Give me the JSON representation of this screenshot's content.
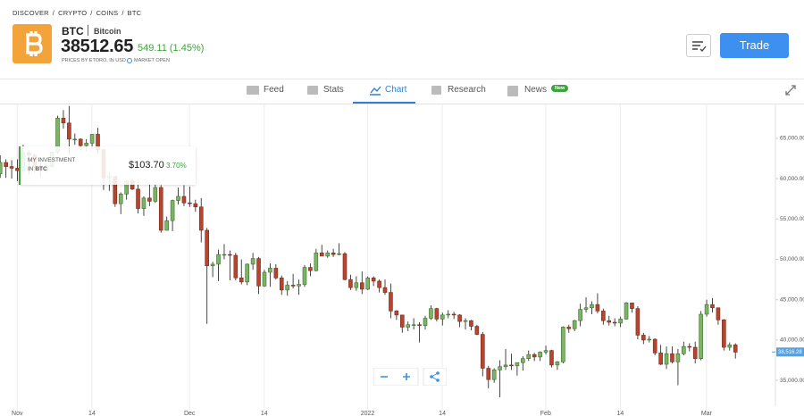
{
  "header": {
    "breadcrumb": [
      "DISCOVER",
      "CRYPTO",
      "COINS",
      "BTC"
    ],
    "breadcrumb_separator": "/",
    "ticker": "BTC",
    "name": "Bitcoin",
    "price": "38512.65",
    "change": "549.11 (1.45%)",
    "source_note": "PRICES BY ETORO, IN USD",
    "market_status": "MARKET OPEN",
    "trade_button": "Trade"
  },
  "tabs": [
    {
      "label": "Feed"
    },
    {
      "label": "Stats"
    },
    {
      "label": "Chart",
      "active": true
    },
    {
      "label": "Research"
    },
    {
      "label": "News",
      "badge": "New"
    }
  ],
  "investment": {
    "label_line1": "MY INVESTMENT",
    "label_line2_prefix": "IN",
    "label_line2_ticker": "BTC",
    "amount": "$103.70",
    "change": "3.70%"
  },
  "chart_data": {
    "type": "candlestick",
    "open": [
      60600,
      62000,
      61500,
      61300,
      61000,
      63200,
      62900,
      61400,
      61000,
      61500,
      63300,
      67500,
      66900,
      64900,
      64900,
      64100,
      64400,
      65500,
      63600,
      60100,
      60300,
      56900,
      58100,
      59700,
      58700,
      56300,
      57600,
      57200,
      58900,
      53600,
      54800,
      57300,
      57800,
      57000,
      56900,
      56500,
      53600,
      49200,
      49400,
      50600,
      50600,
      50500,
      47700,
      47200,
      49400,
      50100,
      46700,
      48400,
      48900,
      47700,
      46200,
      46800,
      46700,
      46900,
      49000,
      48600,
      50800,
      50400,
      50800,
      50600,
      50700,
      47500,
      46500,
      47100,
      46300,
      47700,
      47300,
      46500,
      45900,
      43600,
      43100,
      41600,
      41900,
      41900,
      41800,
      42700,
      43900,
      42600,
      43100,
      43200,
      43100,
      42300,
      42400,
      41700,
      40700,
      36500,
      35100,
      36300,
      36700,
      36900,
      36800,
      37200,
      37700,
      38200,
      37900,
      38500,
      38700,
      36900,
      37300,
      41600,
      41400,
      42400,
      43800,
      44000,
      44400,
      43600,
      42400,
      42200,
      42100,
      42600,
      44600,
      43900,
      40600,
      40000,
      40100,
      38400,
      37000,
      38300,
      37300,
      38300,
      39200,
      39100,
      37700,
      43200,
      44400,
      44000,
      42500,
      39100,
      39400
    ],
    "high": [
      62900,
      62400,
      62300,
      62400,
      64200,
      63500,
      63100,
      62600,
      61900,
      63300,
      67800,
      68500,
      69000,
      65600,
      65000,
      64900,
      65500,
      66300,
      63600,
      60800,
      60300,
      58300,
      59800,
      60000,
      59300,
      57800,
      59300,
      59400,
      59200,
      55300,
      57400,
      58900,
      59200,
      59000,
      57400,
      57600,
      53900,
      49700,
      51200,
      51900,
      51100,
      50800,
      50000,
      49500,
      50800,
      50300,
      48700,
      49500,
      49400,
      48000,
      47300,
      48200,
      47500,
      49300,
      49500,
      51300,
      51800,
      51100,
      51300,
      52000,
      50900,
      48100,
      47900,
      48500,
      47900,
      47900,
      47500,
      47500,
      47000,
      43700,
      43100,
      42300,
      42700,
      42200,
      43000,
      44300,
      44000,
      43400,
      43700,
      43500,
      43200,
      42700,
      42500,
      41900,
      41000,
      36800,
      36500,
      37500,
      38900,
      38300,
      37200,
      38000,
      38700,
      38400,
      38600,
      39300,
      38800,
      37400,
      41700,
      41900,
      42500,
      44500,
      45300,
      44800,
      45800,
      43900,
      43000,
      42700,
      42900,
      44700,
      44600,
      44200,
      40900,
      40500,
      40200,
      39400,
      39200,
      39200,
      38900,
      39800,
      39600,
      39800,
      43600,
      45000,
      45200,
      44000,
      42600,
      39700,
      39600
    ],
    "low": [
      60100,
      60100,
      60000,
      59700,
      60700,
      60500,
      60700,
      60200,
      60800,
      61400,
      63100,
      66200,
      63000,
      64200,
      63500,
      63400,
      63700,
      63100,
      58600,
      58500,
      56500,
      55600,
      57400,
      58600,
      55700,
      55400,
      56600,
      57000,
      53300,
      53600,
      53500,
      56800,
      56600,
      56500,
      55900,
      52100,
      42000,
      47800,
      47300,
      50000,
      47400,
      47400,
      46900,
      46800,
      48700,
      45700,
      46600,
      46600,
      47500,
      45600,
      45500,
      46400,
      45600,
      46600,
      47900,
      48500,
      50400,
      50200,
      50300,
      50500,
      47400,
      46200,
      46100,
      45700,
      46200,
      46700,
      45900,
      45600,
      42700,
      42500,
      40900,
      41100,
      41300,
      39700,
      41300,
      42500,
      42300,
      41800,
      42700,
      42600,
      41600,
      41300,
      41200,
      40600,
      35500,
      34000,
      34700,
      32900,
      36300,
      36300,
      35600,
      36200,
      37400,
      37400,
      37400,
      38200,
      36600,
      36300,
      37100,
      40900,
      41100,
      41700,
      43400,
      43200,
      43300,
      41900,
      41800,
      41700,
      41600,
      42500,
      43400,
      40100,
      39500,
      39700,
      38100,
      36900,
      36400,
      37100,
      34400,
      38100,
      38600,
      37100,
      37500,
      42900,
      43400,
      41900,
      38700,
      38700,
      37700
    ],
    "close": [
      62000,
      61500,
      61300,
      61000,
      63200,
      62900,
      61400,
      61000,
      61500,
      63300,
      67500,
      66900,
      64900,
      64900,
      64100,
      64400,
      65500,
      63600,
      60100,
      60300,
      56900,
      58100,
      59700,
      58700,
      56300,
      57600,
      57200,
      58900,
      53600,
      54800,
      57300,
      57800,
      57000,
      56900,
      56500,
      53600,
      49200,
      49400,
      50600,
      50600,
      50500,
      47700,
      47200,
      49400,
      50100,
      46700,
      48400,
      48900,
      47700,
      46200,
      46800,
      46700,
      46900,
      49000,
      48600,
      50800,
      50400,
      50800,
      50600,
      50700,
      47500,
      46500,
      47100,
      46300,
      47700,
      47300,
      46500,
      45900,
      43600,
      43100,
      41600,
      41900,
      41900,
      41800,
      42700,
      43900,
      42600,
      43100,
      43200,
      43100,
      42300,
      42400,
      41700,
      40700,
      36500,
      35100,
      36300,
      36700,
      36900,
      36800,
      37200,
      37700,
      38200,
      37900,
      38500,
      38700,
      36900,
      37300,
      41600,
      41400,
      42400,
      43800,
      44000,
      44400,
      43600,
      42400,
      42200,
      42100,
      42600,
      44600,
      43900,
      40600,
      40000,
      40100,
      38400,
      37000,
      38300,
      37300,
      38300,
      39200,
      39100,
      37700,
      43200,
      44400,
      44000,
      42500,
      39100,
      39400,
      38500
    ],
    "up_color": "#79b562",
    "down_color": "#b5452f",
    "xlim": [
      0,
      135
    ],
    "xticks": [
      {
        "value": 3,
        "label": "Nov"
      },
      {
        "value": 16,
        "label": "14"
      },
      {
        "value": 33,
        "label": "Dec"
      },
      {
        "value": 46,
        "label": "14"
      },
      {
        "value": 64,
        "label": "2022"
      },
      {
        "value": 77,
        "label": "14"
      },
      {
        "value": 95,
        "label": "Feb"
      },
      {
        "value": 108,
        "label": "14"
      },
      {
        "value": 123,
        "label": "Mar"
      }
    ],
    "ylim": [
      31800,
      69200
    ],
    "yticks": [
      {
        "value": 35000,
        "label": "35,000.00"
      },
      {
        "value": 40000,
        "label": "40,000.00"
      },
      {
        "value": 45000,
        "label": "45,000.00"
      },
      {
        "value": 50000,
        "label": "50,000.00"
      },
      {
        "value": 55000,
        "label": "55,000.00"
      },
      {
        "value": 60000,
        "label": "60,000.00"
      },
      {
        "value": 65000,
        "label": "65,000.00"
      }
    ],
    "last_price": {
      "value": 38516.28,
      "label": "38,516.28"
    },
    "grid": true
  }
}
